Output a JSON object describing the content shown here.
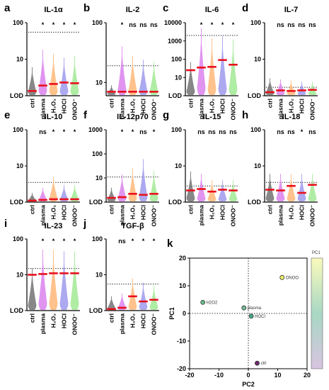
{
  "chart_data": [
    {
      "letter": "a",
      "title": "IL-1α",
      "type": "violin",
      "scale": "log",
      "ylim": [
        1,
        100
      ],
      "yticks": [
        {
          "v": 1,
          "label": "LOD"
        },
        {
          "v": 10,
          "label": "10"
        },
        {
          "v": 100,
          "label": "100"
        }
      ],
      "threshold": 55,
      "categories": [
        "ctrl",
        "plasma",
        "H₂O₂",
        "HOCl",
        "ONOO⁻"
      ],
      "significance": [
        "",
        "*",
        "*",
        "*",
        "*"
      ],
      "medians": [
        1.35,
        1.9,
        2.1,
        2.3,
        2.2
      ],
      "maxima": [
        6,
        18,
        14,
        11,
        12
      ]
    },
    {
      "letter": "b",
      "title": "IL-2",
      "type": "violin",
      "scale": "log",
      "ylim": [
        6,
        100
      ],
      "yticks": [
        {
          "v": 10,
          "label": "10"
        },
        {
          "v": 100,
          "label": "100"
        }
      ],
      "threshold": 19,
      "categories": [
        "ctrl",
        "plasma",
        "H₂O₂",
        "HOCl",
        "ONOO⁻"
      ],
      "significance": [
        "",
        "*",
        "ns",
        "ns",
        "ns"
      ],
      "medians": [
        7,
        7,
        7,
        7,
        7
      ],
      "maxima": [
        9,
        40,
        28,
        24,
        22
      ]
    },
    {
      "letter": "c",
      "title": "IL-6",
      "type": "violin",
      "scale": "log",
      "ylim": [
        1,
        10000
      ],
      "yticks": [
        {
          "v": 1,
          "label": "LOD"
        },
        {
          "v": 10,
          "label": "10"
        },
        {
          "v": 100,
          "label": "100"
        },
        {
          "v": 1000,
          "label": "1000"
        },
        {
          "v": 10000,
          "label": "10000"
        }
      ],
      "threshold": 2000,
      "categories": [
        "ctrl",
        "plasma",
        "H₂O₂",
        "HOCl",
        "ONOO⁻"
      ],
      "significance": [
        "",
        "*",
        "*",
        "*",
        "*"
      ],
      "medians": [
        25,
        35,
        38,
        90,
        50
      ],
      "maxima": [
        70,
        5000,
        1400,
        1800,
        1200
      ]
    },
    {
      "letter": "d",
      "title": "IL-7",
      "type": "violin",
      "scale": "log",
      "ylim": [
        1,
        100
      ],
      "yticks": [
        {
          "v": 1,
          "label": "LOD"
        },
        {
          "v": 10,
          "label": "10"
        },
        {
          "v": 100,
          "label": "100"
        }
      ],
      "threshold": 1.7,
      "categories": [
        "ctrl",
        "plasma",
        "H₂O₂",
        "HOCl",
        "ONOO⁻"
      ],
      "significance": [
        "",
        "ns",
        "ns",
        "ns",
        "ns"
      ],
      "medians": [
        1.25,
        1.4,
        1.35,
        1.4,
        1.45
      ],
      "maxima": [
        3,
        2.8,
        2.6,
        2.4,
        2.4
      ]
    },
    {
      "letter": "e",
      "title": "IL-10",
      "type": "violin",
      "scale": "log",
      "ylim": [
        1,
        100
      ],
      "yticks": [
        {
          "v": 1,
          "label": "LOD"
        },
        {
          "v": 10,
          "label": "10"
        },
        {
          "v": 100,
          "label": "100"
        }
      ],
      "threshold": 3.5,
      "categories": [
        "ctrl",
        "plasma",
        "H₂O₂",
        "HOCl",
        "ONOO⁻"
      ],
      "significance": [
        "",
        "ns",
        "*",
        "*",
        "*"
      ],
      "medians": [
        1.1,
        1.15,
        1.2,
        1.2,
        1.2
      ],
      "maxima": [
        1.8,
        2.5,
        5,
        3,
        3
      ]
    },
    {
      "letter": "f",
      "title": "IL-12p70",
      "type": "violin",
      "scale": "log",
      "ylim": [
        1,
        1000
      ],
      "yticks": [
        {
          "v": 1,
          "label": "LOD"
        },
        {
          "v": 10,
          "label": "10"
        },
        {
          "v": 100,
          "label": "100"
        },
        {
          "v": 1000,
          "label": "1000"
        }
      ],
      "threshold": 11,
      "categories": [
        "ctrl",
        "plasma",
        "H₂O₂",
        "HOCl",
        "ONOO⁻"
      ],
      "significance": [
        "",
        "*",
        "*",
        "ns",
        "*"
      ],
      "medians": [
        1.5,
        1.6,
        2.2,
        2,
        2.2
      ],
      "maxima": [
        4,
        14,
        25,
        60,
        20
      ]
    },
    {
      "letter": "g",
      "title": "IL-15",
      "type": "violin",
      "scale": "log",
      "ylim": [
        1,
        100
      ],
      "yticks": [
        {
          "v": 1,
          "label": "LOD"
        },
        {
          "v": 10,
          "label": "10"
        },
        {
          "v": 100,
          "label": "100"
        }
      ],
      "threshold": 2.8,
      "categories": [
        "ctrl",
        "plasma",
        "H₂O₂",
        "HOCl",
        "ONOO⁻"
      ],
      "significance": [
        "",
        "ns",
        "ns",
        "ns",
        "ns"
      ],
      "medians": [
        2.1,
        2.3,
        1.95,
        2.2,
        2.1
      ],
      "maxima": [
        7,
        6,
        4,
        4,
        4
      ]
    },
    {
      "letter": "h",
      "title": "IL-18",
      "type": "violin",
      "scale": "log",
      "ylim": [
        1,
        100
      ],
      "yticks": [
        {
          "v": 1,
          "label": "LOD"
        },
        {
          "v": 10,
          "label": "10"
        },
        {
          "v": 100,
          "label": "100"
        }
      ],
      "threshold": 3.5,
      "categories": [
        "ctrl",
        "plasma",
        "H₂O₂",
        "HOCl",
        "ONOO⁻"
      ],
      "significance": [
        "",
        "ns",
        "ns",
        "*",
        "ns"
      ],
      "medians": [
        2.2,
        2.1,
        2.8,
        1.8,
        3
      ],
      "maxima": [
        6,
        6,
        6,
        6,
        6
      ]
    },
    {
      "letter": "i",
      "title": "IL-23",
      "type": "violin",
      "scale": "log",
      "ylim": [
        1,
        100
      ],
      "yticks": [
        {
          "v": 1,
          "label": "LOD"
        },
        {
          "v": 10,
          "label": "10"
        },
        {
          "v": 100,
          "label": "100"
        }
      ],
      "threshold": 15,
      "categories": [
        "ctrl",
        "plasma",
        "H₂O₂",
        "HOCl",
        "ONOO⁻"
      ],
      "significance": [
        "",
        "*",
        "*",
        "*",
        "*"
      ],
      "medians": [
        10,
        10.5,
        11,
        11,
        11
      ],
      "maxima": [
        15,
        50,
        50,
        45,
        45
      ]
    },
    {
      "letter": "j",
      "title": "TGF-β",
      "type": "violin",
      "scale": "log",
      "ylim": [
        1,
        100
      ],
      "yticks": [
        {
          "v": 1,
          "label": "LOD"
        },
        {
          "v": 10,
          "label": "10"
        },
        {
          "v": 100,
          "label": "100"
        }
      ],
      "threshold": 5.5,
      "categories": [
        "ctrl",
        "plasma",
        "H₂O₂",
        "HOCl",
        "ONOO⁻"
      ],
      "significance": [
        "",
        "ns",
        "*",
        "*",
        "*"
      ],
      "medians": [
        1.1,
        1.2,
        2.5,
        1.8,
        2
      ],
      "maxima": [
        2.5,
        3,
        8,
        6,
        5
      ]
    },
    {
      "letter": "k",
      "title": "",
      "type": "scatter",
      "xlabel": "PC2",
      "ylabel": "PC1",
      "xlim": [
        -20,
        20
      ],
      "ylim": [
        -20,
        20
      ],
      "xticks": [
        -20,
        -10,
        0,
        10,
        20
      ],
      "yticks": [
        -20,
        -10,
        0,
        10,
        20
      ],
      "points": [
        {
          "label": "ONOO",
          "x": 11.5,
          "y": 13,
          "color": "#eeee66"
        },
        {
          "label": "H2O2",
          "x": -15.5,
          "y": 4,
          "color": "#66bb88"
        },
        {
          "label": "plasma",
          "x": -1.5,
          "y": 2,
          "color": "#77bb99"
        },
        {
          "label": "HOCl",
          "x": 1,
          "y": -1,
          "color": "#44aa88"
        },
        {
          "label": "ctrl",
          "x": 3,
          "y": -18,
          "color": "#6a2a70"
        }
      ],
      "colorbar": {
        "label": "PC1",
        "colors": [
          "#fafabb",
          "#a8d8c4",
          "#d8c4e0"
        ]
      }
    }
  ],
  "palette": {
    "ctrl": "#7a7a7a",
    "plasma": "#dd88ee",
    "h2o2": "#ffbb80",
    "hocl": "#a4a0ee",
    "onoo": "#a6ea9a",
    "median": "#e8101c"
  }
}
